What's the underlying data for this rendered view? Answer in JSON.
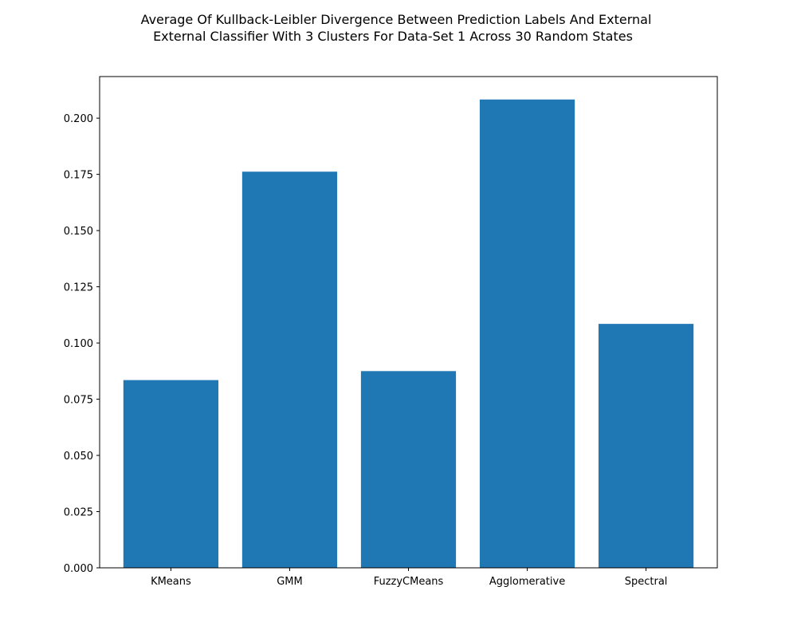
{
  "chart_data": {
    "type": "bar",
    "title": "Average Of Kullback-Leibler Divergence Between Prediction Labels And External",
    "subtitle": "External Classifier With 3 Clusters For Data-Set 1 Across 30 Random States",
    "xlabel": "",
    "ylabel": "",
    "categories": [
      "KMeans",
      "GMM",
      "FuzzyCMeans",
      "Agglomerative",
      "Spectral"
    ],
    "values": [
      0.0835,
      0.1762,
      0.0875,
      0.2083,
      0.1085
    ],
    "ylim": [
      0,
      0.2185
    ],
    "yticks": [
      0.0,
      0.025,
      0.05,
      0.075,
      0.1,
      0.125,
      0.15,
      0.175,
      0.2
    ],
    "ytick_labels": [
      "0.000",
      "0.025",
      "0.050",
      "0.075",
      "0.100",
      "0.125",
      "0.150",
      "0.175",
      "0.200"
    ],
    "bar_color": "#1f77b4",
    "grid": false,
    "legend": null
  }
}
